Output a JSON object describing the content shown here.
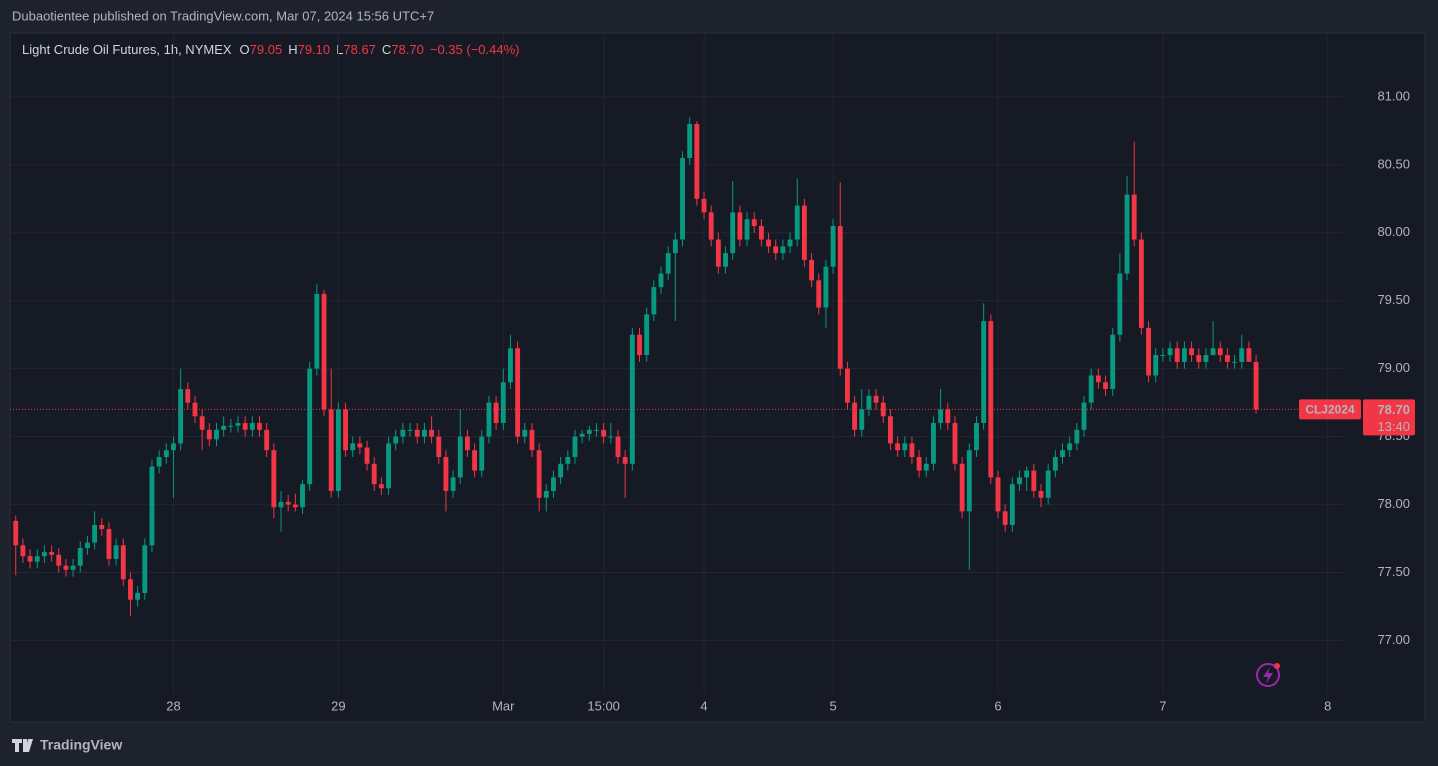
{
  "header": {
    "published": "Dubaotientee published on TradingView.com, Mar 07, 2024 15:56 UTC+7",
    "brand": "TradingView"
  },
  "chart_data": {
    "type": "candlestick",
    "title": "Light Crude Oil Futures, 1h, NYMEX",
    "legend": [
      {
        "label": "O",
        "value": "79.05"
      },
      {
        "label": "H",
        "value": "79.10"
      },
      {
        "label": "L",
        "value": "78.67"
      },
      {
        "label": "C",
        "value": "78.70"
      }
    ],
    "change": "−0.35 (−0.44%)",
    "symbol": "CLJ2024",
    "last_price": "78.70",
    "countdown": "13:40",
    "up_color": "#089981",
    "down_color": "#f23645",
    "grid": true,
    "xlim": [
      -0.8,
      185.4
    ],
    "ylim": [
      76.4,
      81.47
    ],
    "yticks": [
      {
        "value": 77,
        "label": "77.00"
      },
      {
        "value": 77.5,
        "label": "77.50"
      },
      {
        "value": 78,
        "label": "78.00"
      },
      {
        "value": 78.5,
        "label": "78.50"
      },
      {
        "value": 79,
        "label": "79.00"
      },
      {
        "value": 79.5,
        "label": "79.50"
      },
      {
        "value": 80,
        "label": "80.00"
      },
      {
        "value": 80.5,
        "label": "80.50"
      },
      {
        "value": 81,
        "label": "81.00"
      }
    ],
    "xticks": [
      {
        "value": 22,
        "label": "28"
      },
      {
        "value": 45,
        "label": "29"
      },
      {
        "value": 68,
        "label": "Mar"
      },
      {
        "value": 82,
        "label": "15:00"
      },
      {
        "value": 96,
        "label": "4"
      },
      {
        "value": 114,
        "label": "5"
      },
      {
        "value": 137,
        "label": "6"
      },
      {
        "value": 160,
        "label": "7"
      },
      {
        "value": 183,
        "label": "8"
      }
    ],
    "candles": [
      [
        77.88,
        77.92,
        77.48,
        77.7
      ],
      [
        77.7,
        77.75,
        77.57,
        77.62
      ],
      [
        77.62,
        77.67,
        77.53,
        77.58
      ],
      [
        77.58,
        77.67,
        77.53,
        77.62
      ],
      [
        77.62,
        77.7,
        77.57,
        77.65
      ],
      [
        77.65,
        77.7,
        77.58,
        77.63
      ],
      [
        77.63,
        77.68,
        77.5,
        77.55
      ],
      [
        77.55,
        77.6,
        77.47,
        77.52
      ],
      [
        77.52,
        77.6,
        77.47,
        77.55
      ],
      [
        77.55,
        77.73,
        77.5,
        77.68
      ],
      [
        77.68,
        77.77,
        77.63,
        77.72
      ],
      [
        77.72,
        77.95,
        77.67,
        77.85
      ],
      [
        77.85,
        77.9,
        77.77,
        77.82
      ],
      [
        77.82,
        77.87,
        77.55,
        77.6
      ],
      [
        77.6,
        77.75,
        77.55,
        77.7
      ],
      [
        77.7,
        77.75,
        77.4,
        77.45
      ],
      [
        77.45,
        77.5,
        77.18,
        77.3
      ],
      [
        77.3,
        77.4,
        77.25,
        77.35
      ],
      [
        77.35,
        77.75,
        77.3,
        77.7
      ],
      [
        77.7,
        78.33,
        77.65,
        78.28
      ],
      [
        78.28,
        78.4,
        78.23,
        78.35
      ],
      [
        78.35,
        78.45,
        78.3,
        78.4
      ],
      [
        78.4,
        78.5,
        78.05,
        78.45
      ],
      [
        78.45,
        79.0,
        78.4,
        78.85
      ],
      [
        78.85,
        78.9,
        78.7,
        78.75
      ],
      [
        78.75,
        78.8,
        78.6,
        78.65
      ],
      [
        78.65,
        78.7,
        78.4,
        78.55
      ],
      [
        78.55,
        78.6,
        78.43,
        78.48
      ],
      [
        78.48,
        78.6,
        78.43,
        78.55
      ],
      [
        78.55,
        78.65,
        78.5,
        78.58
      ],
      [
        78.58,
        78.63,
        78.53,
        78.58
      ],
      [
        78.58,
        78.65,
        78.53,
        78.6
      ],
      [
        78.6,
        78.65,
        78.5,
        78.55
      ],
      [
        78.55,
        78.65,
        78.5,
        78.6
      ],
      [
        78.6,
        78.65,
        78.5,
        78.55
      ],
      [
        78.55,
        78.6,
        78.35,
        78.4
      ],
      [
        78.4,
        78.45,
        77.9,
        77.98
      ],
      [
        77.98,
        78.1,
        77.8,
        78.02
      ],
      [
        78.02,
        78.07,
        77.95,
        78.0
      ],
      [
        78.0,
        78.08,
        77.95,
        77.98
      ],
      [
        77.98,
        78.18,
        77.93,
        78.15
      ],
      [
        78.15,
        79.05,
        78.1,
        79.0
      ],
      [
        79.0,
        79.62,
        78.95,
        79.55
      ],
      [
        79.55,
        79.58,
        78.65,
        78.7
      ],
      [
        78.7,
        79.0,
        78.05,
        78.1
      ],
      [
        78.1,
        78.75,
        78.05,
        78.7
      ],
      [
        78.7,
        78.75,
        78.35,
        78.4
      ],
      [
        78.4,
        78.5,
        78.35,
        78.45
      ],
      [
        78.45,
        78.5,
        78.37,
        78.42
      ],
      [
        78.42,
        78.47,
        78.25,
        78.3
      ],
      [
        78.3,
        78.35,
        78.1,
        78.15
      ],
      [
        78.15,
        78.2,
        78.07,
        78.12
      ],
      [
        78.12,
        78.5,
        78.07,
        78.45
      ],
      [
        78.45,
        78.55,
        78.4,
        78.5
      ],
      [
        78.5,
        78.6,
        78.45,
        78.55
      ],
      [
        78.55,
        78.6,
        78.5,
        78.55
      ],
      [
        78.55,
        78.6,
        78.45,
        78.5
      ],
      [
        78.5,
        78.6,
        78.45,
        78.55
      ],
      [
        78.55,
        78.65,
        78.45,
        78.5
      ],
      [
        78.5,
        78.55,
        78.3,
        78.35
      ],
      [
        78.35,
        78.4,
        77.95,
        78.1
      ],
      [
        78.1,
        78.25,
        78.05,
        78.2
      ],
      [
        78.2,
        78.7,
        78.15,
        78.5
      ],
      [
        78.5,
        78.55,
        78.35,
        78.4
      ],
      [
        78.4,
        78.45,
        78.2,
        78.25
      ],
      [
        78.25,
        78.55,
        78.2,
        78.5
      ],
      [
        78.5,
        78.8,
        78.45,
        78.75
      ],
      [
        78.75,
        78.8,
        78.55,
        78.6
      ],
      [
        78.6,
        79.0,
        78.55,
        78.9
      ],
      [
        78.9,
        79.25,
        78.85,
        79.15
      ],
      [
        79.15,
        79.2,
        78.45,
        78.5
      ],
      [
        78.5,
        78.6,
        78.45,
        78.55
      ],
      [
        78.55,
        78.6,
        78.35,
        78.4
      ],
      [
        78.4,
        78.45,
        77.95,
        78.05
      ],
      [
        78.05,
        78.15,
        77.95,
        78.1
      ],
      [
        78.1,
        78.25,
        78.05,
        78.2
      ],
      [
        78.2,
        78.35,
        78.15,
        78.3
      ],
      [
        78.3,
        78.4,
        78.25,
        78.35
      ],
      [
        78.35,
        78.55,
        78.3,
        78.5
      ],
      [
        78.5,
        78.55,
        78.45,
        78.52
      ],
      [
        78.52,
        78.58,
        78.47,
        78.55
      ],
      [
        78.55,
        78.6,
        78.5,
        78.55
      ],
      [
        78.55,
        78.6,
        78.45,
        78.5
      ],
      [
        78.5,
        78.6,
        78.45,
        78.5
      ],
      [
        78.5,
        78.55,
        78.3,
        78.35
      ],
      [
        78.35,
        78.4,
        78.05,
        78.3
      ],
      [
        78.3,
        79.3,
        78.25,
        79.25
      ],
      [
        79.25,
        79.3,
        79.05,
        79.1
      ],
      [
        79.1,
        79.45,
        79.05,
        79.4
      ],
      [
        79.4,
        79.65,
        79.35,
        79.6
      ],
      [
        79.6,
        79.75,
        79.55,
        79.7
      ],
      [
        79.7,
        79.9,
        79.65,
        79.85
      ],
      [
        79.85,
        80.0,
        79.35,
        79.95
      ],
      [
        79.95,
        80.6,
        79.9,
        80.55
      ],
      [
        80.55,
        80.85,
        80.5,
        80.8
      ],
      [
        80.8,
        80.82,
        80.2,
        80.25
      ],
      [
        80.25,
        80.3,
        80.1,
        80.15
      ],
      [
        80.15,
        80.2,
        79.9,
        79.95
      ],
      [
        79.95,
        80.0,
        79.7,
        79.75
      ],
      [
        79.75,
        79.9,
        79.7,
        79.85
      ],
      [
        79.85,
        80.38,
        79.8,
        80.15
      ],
      [
        80.15,
        80.2,
        79.9,
        79.95
      ],
      [
        79.95,
        80.15,
        79.9,
        80.1
      ],
      [
        80.1,
        80.15,
        80.0,
        80.05
      ],
      [
        80.05,
        80.1,
        79.9,
        79.95
      ],
      [
        79.95,
        80.0,
        79.85,
        79.9
      ],
      [
        79.9,
        79.95,
        79.8,
        79.85
      ],
      [
        79.85,
        79.95,
        79.8,
        79.9
      ],
      [
        79.9,
        80.0,
        79.85,
        79.95
      ],
      [
        79.95,
        80.4,
        79.9,
        80.2
      ],
      [
        80.2,
        80.25,
        79.75,
        79.8
      ],
      [
        79.8,
        79.85,
        79.6,
        79.65
      ],
      [
        79.65,
        79.7,
        79.4,
        79.45
      ],
      [
        79.45,
        79.8,
        79.3,
        79.75
      ],
      [
        79.75,
        80.1,
        79.7,
        80.05
      ],
      [
        80.05,
        80.37,
        78.95,
        79.0
      ],
      [
        79.0,
        79.05,
        78.7,
        78.75
      ],
      [
        78.75,
        78.8,
        78.5,
        78.55
      ],
      [
        78.55,
        78.85,
        78.5,
        78.7
      ],
      [
        78.7,
        78.85,
        78.65,
        78.8
      ],
      [
        78.8,
        78.85,
        78.7,
        78.75
      ],
      [
        78.75,
        78.8,
        78.6,
        78.65
      ],
      [
        78.65,
        78.7,
        78.4,
        78.45
      ],
      [
        78.45,
        78.5,
        78.35,
        78.4
      ],
      [
        78.4,
        78.5,
        78.35,
        78.45
      ],
      [
        78.45,
        78.5,
        78.3,
        78.35
      ],
      [
        78.35,
        78.4,
        78.2,
        78.25
      ],
      [
        78.25,
        78.35,
        78.2,
        78.3
      ],
      [
        78.3,
        78.65,
        78.25,
        78.6
      ],
      [
        78.6,
        78.85,
        78.55,
        78.7
      ],
      [
        78.7,
        78.75,
        78.55,
        78.6
      ],
      [
        78.6,
        78.65,
        78.25,
        78.3
      ],
      [
        78.3,
        78.35,
        77.9,
        77.95
      ],
      [
        77.95,
        78.45,
        77.52,
        78.4
      ],
      [
        78.4,
        78.65,
        78.35,
        78.6
      ],
      [
        78.6,
        79.48,
        78.55,
        79.35
      ],
      [
        79.35,
        79.4,
        78.15,
        78.2
      ],
      [
        78.2,
        78.25,
        77.9,
        77.95
      ],
      [
        77.95,
        78.0,
        77.8,
        77.85
      ],
      [
        77.85,
        78.2,
        77.8,
        78.15
      ],
      [
        78.15,
        78.25,
        78.1,
        78.2
      ],
      [
        78.2,
        78.28,
        78.1,
        78.25
      ],
      [
        78.25,
        78.3,
        78.05,
        78.1
      ],
      [
        78.1,
        78.15,
        77.98,
        78.05
      ],
      [
        78.05,
        78.3,
        78.0,
        78.25
      ],
      [
        78.25,
        78.4,
        78.2,
        78.35
      ],
      [
        78.35,
        78.45,
        78.3,
        78.4
      ],
      [
        78.4,
        78.5,
        78.35,
        78.45
      ],
      [
        78.45,
        78.6,
        78.4,
        78.55
      ],
      [
        78.55,
        78.8,
        78.5,
        78.75
      ],
      [
        78.75,
        79.0,
        78.7,
        78.95
      ],
      [
        78.95,
        79.0,
        78.85,
        78.9
      ],
      [
        78.9,
        78.95,
        78.8,
        78.85
      ],
      [
        78.85,
        79.3,
        78.8,
        79.25
      ],
      [
        79.25,
        79.85,
        79.2,
        79.7
      ],
      [
        79.7,
        80.42,
        79.65,
        80.28
      ],
      [
        80.28,
        80.67,
        79.9,
        79.95
      ],
      [
        79.95,
        80.0,
        79.25,
        79.3
      ],
      [
        79.3,
        79.35,
        78.9,
        78.95
      ],
      [
        78.95,
        79.15,
        78.9,
        79.1
      ],
      [
        79.1,
        79.15,
        79.05,
        79.1
      ],
      [
        79.1,
        79.2,
        79.05,
        79.15
      ],
      [
        79.15,
        79.2,
        79.0,
        79.05
      ],
      [
        79.05,
        79.2,
        79.0,
        79.15
      ],
      [
        79.15,
        79.2,
        79.05,
        79.1
      ],
      [
        79.1,
        79.15,
        79.0,
        79.05
      ],
      [
        79.05,
        79.15,
        79.0,
        79.1
      ],
      [
        79.1,
        79.35,
        79.1,
        79.15
      ],
      [
        79.15,
        79.2,
        79.05,
        79.1
      ],
      [
        79.1,
        79.15,
        79.0,
        79.05
      ],
      [
        79.05,
        79.1,
        79.0,
        79.05
      ],
      [
        79.05,
        79.25,
        79.0,
        79.15
      ],
      [
        79.15,
        79.2,
        79.05,
        79.05
      ],
      [
        79.05,
        79.1,
        78.67,
        78.7
      ]
    ]
  }
}
